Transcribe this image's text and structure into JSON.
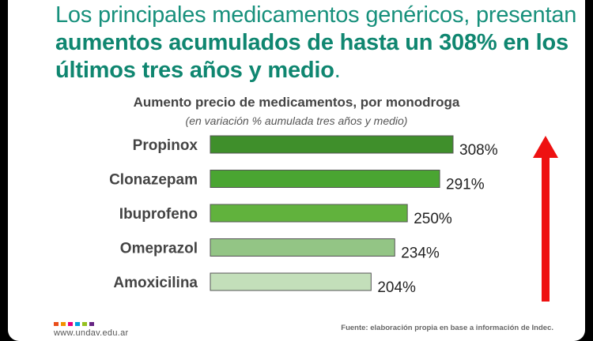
{
  "headline": {
    "part1": "Los principales medicamentos genéricos, presentan ",
    "part2": "aumentos acumulados de hasta un 308% en los últimos tres años y medio",
    "part3": "."
  },
  "chart_data": {
    "type": "bar",
    "orientation": "horizontal",
    "title": "Aumento precio de medicamentos, por monodroga",
    "subtitle": "(en variación % aumulada tres años y medio)",
    "categories": [
      "Propinox",
      "Clonazepam",
      "Ibuprofeno",
      "Omeprazol",
      "Amoxicilina"
    ],
    "values": [
      308,
      291,
      250,
      234,
      204
    ],
    "value_labels": [
      "308%",
      "291%",
      "250%",
      "234%",
      "204%"
    ],
    "bar_colors": [
      "#3f8f2b",
      "#4aa532",
      "#61b23d",
      "#93c585",
      "#c3dfba"
    ],
    "xlim": [
      0,
      350
    ],
    "grid": false,
    "legend": "none"
  },
  "arrow_color": "#ee1111",
  "logo_colors": [
    "#e94e1b",
    "#f39200",
    "#e6007e",
    "#009fe3",
    "#95c11f",
    "#662483"
  ],
  "footer": {
    "site": "www.undav.edu.ar",
    "source": "Fuente: elaboración propia en base a información de Indec."
  }
}
